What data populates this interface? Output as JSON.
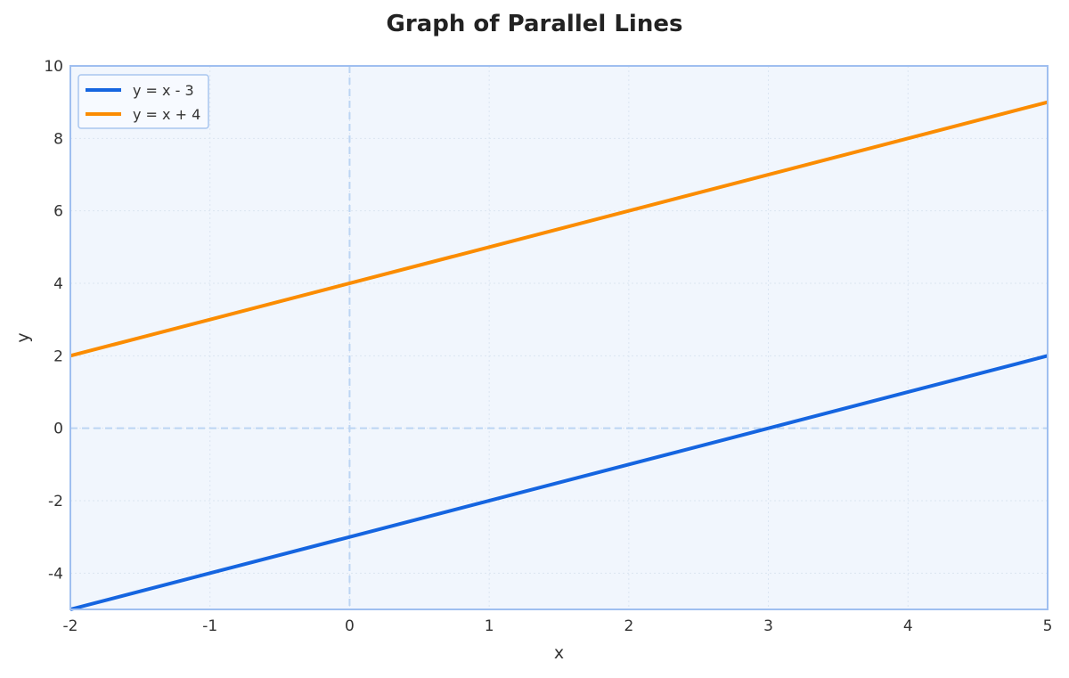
{
  "chart_data": {
    "type": "line",
    "title": "Graph of Parallel Lines",
    "xlabel": "x",
    "ylabel": "y",
    "xlim": [
      -2,
      5
    ],
    "ylim": [
      -5,
      10
    ],
    "xticks": [
      "-2",
      "-1",
      "0",
      "1",
      "2",
      "3",
      "4",
      "5"
    ],
    "yticks": [
      "-4",
      "-2",
      "0",
      "2",
      "4",
      "6",
      "8",
      "10"
    ],
    "grid": true,
    "legend_position": "top-left",
    "series": [
      {
        "name": "y = x - 3",
        "color": "#1565e0",
        "x": [
          -2,
          5
        ],
        "y": [
          -5,
          2
        ]
      },
      {
        "name": "y = x + 4",
        "color": "#fb8c00",
        "x": [
          -2,
          5
        ],
        "y": [
          2,
          9
        ]
      }
    ],
    "colors": {
      "background": "#f1f6fd",
      "frame": "#9fbff0",
      "zero_lines": "#bcd5f3"
    }
  }
}
